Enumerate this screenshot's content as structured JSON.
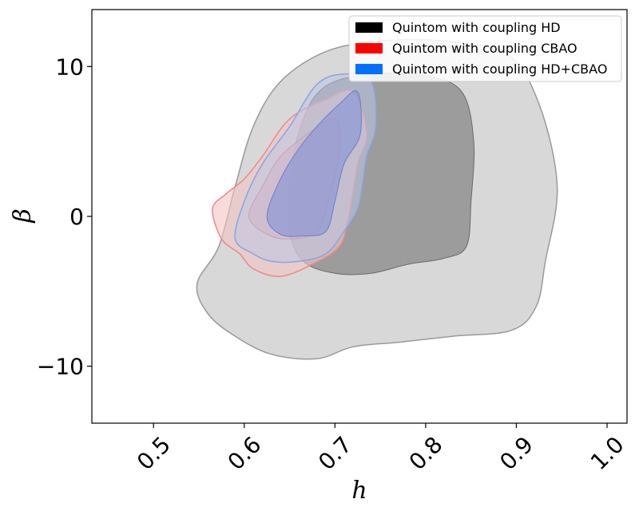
{
  "chart_data": {
    "type": "contour",
    "xlabel": "h",
    "ylabel": "β",
    "xlim": [
      0.432,
      1.022
    ],
    "ylim": [
      -13.8,
      13.8
    ],
    "x_ticks": [
      0.5,
      0.6,
      0.7,
      0.8,
      0.9,
      1.0
    ],
    "x_tick_labels": [
      "0.5",
      "0.6",
      "0.7",
      "0.8",
      "0.9",
      "1.0"
    ],
    "y_ticks": [
      10,
      0,
      -10
    ],
    "y_tick_labels": [
      "10",
      "0",
      "−10"
    ],
    "grid": false,
    "legend_position": "top-right",
    "series": [
      {
        "name": "Quintom with coupling HD",
        "color": "#000000",
        "legend_patch": "#000000",
        "fill_outer": "#d6d6d6",
        "fill_inner": "#999999",
        "stroke_outer": "#9a9a9a",
        "stroke_inner": "#6a6a6a",
        "contours": {
          "outer_2sigma": [
            [
              0.548,
              -4.5
            ],
            [
              0.572,
              -2.0
            ],
            [
              0.59,
              2.0
            ],
            [
              0.61,
              6.0
            ],
            [
              0.64,
              9.0
            ],
            [
              0.69,
              11.0
            ],
            [
              0.75,
              11.7
            ],
            [
              0.82,
              11.7
            ],
            [
              0.89,
              10.8
            ],
            [
              0.925,
              7.5
            ],
            [
              0.945,
              2.0
            ],
            [
              0.932,
              -3.0
            ],
            [
              0.922,
              -6.0
            ],
            [
              0.895,
              -7.6
            ],
            [
              0.83,
              -8.0
            ],
            [
              0.77,
              -8.4
            ],
            [
              0.72,
              -8.7
            ],
            [
              0.68,
              -9.5
            ],
            [
              0.63,
              -9.2
            ],
            [
              0.59,
              -8.0
            ],
            [
              0.56,
              -6.5
            ],
            [
              0.548,
              -4.5
            ]
          ],
          "inner_1sigma": [
            [
              0.65,
              2.5
            ],
            [
              0.665,
              6.5
            ],
            [
              0.69,
              8.7
            ],
            [
              0.74,
              9.5
            ],
            [
              0.8,
              9.4
            ],
            [
              0.84,
              8.3
            ],
            [
              0.853,
              5.0
            ],
            [
              0.85,
              1.0
            ],
            [
              0.845,
              -2.0
            ],
            [
              0.82,
              -2.8
            ],
            [
              0.78,
              -3.2
            ],
            [
              0.74,
              -3.8
            ],
            [
              0.7,
              -3.8
            ],
            [
              0.665,
              -3.0
            ],
            [
              0.65,
              -1.0
            ],
            [
              0.65,
              2.5
            ]
          ]
        }
      },
      {
        "name": "Quintom with coupling CBAO",
        "color": "#ff0000",
        "legend_patch": "#ff0000",
        "fill_outer": "#f4c4c4",
        "fill_inner": "#e7a2a7",
        "stroke_outer": "#ee8888",
        "stroke_inner": "#d07878",
        "contours": {
          "outer_2sigma": [
            [
              0.565,
              0.5
            ],
            [
              0.58,
              1.5
            ],
            [
              0.6,
              2.5
            ],
            [
              0.62,
              4.0
            ],
            [
              0.65,
              6.5
            ],
            [
              0.69,
              7.8
            ],
            [
              0.72,
              8.3
            ],
            [
              0.735,
              5.5
            ],
            [
              0.725,
              3.5
            ],
            [
              0.715,
              0.0
            ],
            [
              0.705,
              -2.0
            ],
            [
              0.675,
              -3.2
            ],
            [
              0.64,
              -4.0
            ],
            [
              0.61,
              -3.5
            ],
            [
              0.595,
              -2.5
            ],
            [
              0.575,
              -1.5
            ],
            [
              0.565,
              0.5
            ]
          ],
          "inner_1sigma": [
            [
              0.605,
              0.0
            ],
            [
              0.62,
              2.0
            ],
            [
              0.64,
              4.0
            ],
            [
              0.67,
              5.5
            ],
            [
              0.7,
              6.5
            ],
            [
              0.705,
              4.5
            ],
            [
              0.695,
              1.5
            ],
            [
              0.68,
              -1.0
            ],
            [
              0.65,
              -1.5
            ],
            [
              0.625,
              -1.2
            ],
            [
              0.605,
              0.0
            ]
          ]
        }
      },
      {
        "name": "Quintom with coupling HD+CBAO",
        "color": "#0070ff",
        "legend_patch": "#0070ff",
        "fill_outer": "#bcc7e6",
        "fill_inner": "#8795d4",
        "stroke_outer": "#8aa4e0",
        "stroke_inner": "#6d7ec8",
        "contours": {
          "outer_2sigma": [
            [
              0.59,
              -1.5
            ],
            [
              0.6,
              1.0
            ],
            [
              0.62,
              3.5
            ],
            [
              0.65,
              6.0
            ],
            [
              0.68,
              8.8
            ],
            [
              0.71,
              9.5
            ],
            [
              0.74,
              9.0
            ],
            [
              0.745,
              6.0
            ],
            [
              0.735,
              4.0
            ],
            [
              0.73,
              2.0
            ],
            [
              0.725,
              0.5
            ],
            [
              0.71,
              -1.0
            ],
            [
              0.69,
              -2.5
            ],
            [
              0.66,
              -3.0
            ],
            [
              0.63,
              -3.0
            ],
            [
              0.61,
              -2.5
            ],
            [
              0.59,
              -1.5
            ]
          ],
          "inner_1sigma": [
            [
              0.625,
              0.0
            ],
            [
              0.64,
              2.5
            ],
            [
              0.66,
              4.5
            ],
            [
              0.68,
              6.0
            ],
            [
              0.705,
              7.5
            ],
            [
              0.725,
              8.3
            ],
            [
              0.728,
              5.5
            ],
            [
              0.71,
              3.5
            ],
            [
              0.7,
              1.0
            ],
            [
              0.69,
              -1.0
            ],
            [
              0.665,
              -1.3
            ],
            [
              0.64,
              -1.2
            ],
            [
              0.625,
              0.0
            ]
          ]
        }
      }
    ]
  }
}
